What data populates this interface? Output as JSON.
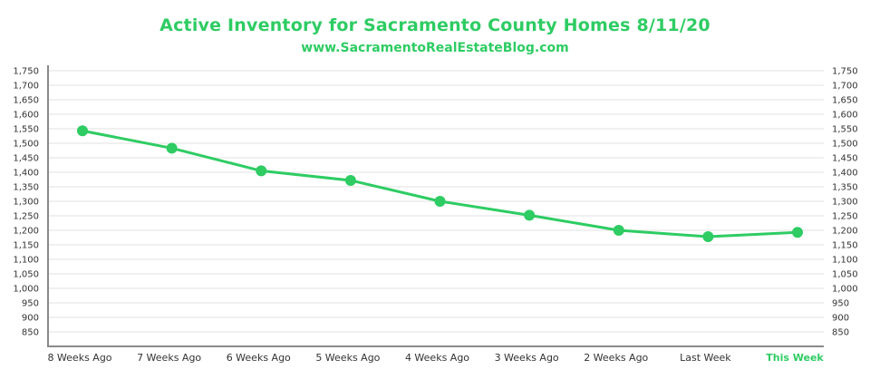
{
  "chart_data": {
    "type": "line",
    "title": "Active Inventory for Sacramento County Homes 8/11/20",
    "subtitle": "www.SacramentoRealEstateBlog.com",
    "xlabel": "",
    "ylabel": "",
    "categories": [
      "8 Weeks Ago",
      "7 Weeks Ago",
      "6 Weeks Ago",
      "5 Weeks Ago",
      "4 Weeks Ago",
      "3 Weeks Ago",
      "2 Weeks Ago",
      "Last Week",
      "This Week"
    ],
    "highlight_category": "This Week",
    "series": [
      {
        "name": "Active Inventory",
        "values": [
          1543,
          1483,
          1405,
          1372,
          1300,
          1252,
          1200,
          1178,
          1193
        ]
      }
    ],
    "ylim": [
      800,
      1750
    ],
    "yticks": [
      850,
      900,
      950,
      1000,
      1050,
      1100,
      1150,
      1200,
      1250,
      1300,
      1350,
      1400,
      1450,
      1500,
      1550,
      1600,
      1650,
      1700,
      1750
    ],
    "ytick_labels": [
      "850",
      "900",
      "950",
      "1,000",
      "1,050",
      "1,100",
      "1,150",
      "1,200",
      "1,250",
      "1,300",
      "1,350",
      "1,400",
      "1,450",
      "1,500",
      "1,550",
      "1,600",
      "1,650",
      "1,700",
      "1,750"
    ],
    "dual_y_axis": true,
    "grid": true,
    "legend": "none",
    "colors": {
      "line": "#2ecc63",
      "highlight": "#2ecc63",
      "grid": "#ececec",
      "axis": "#8a8a8a",
      "text": "#333333"
    }
  }
}
